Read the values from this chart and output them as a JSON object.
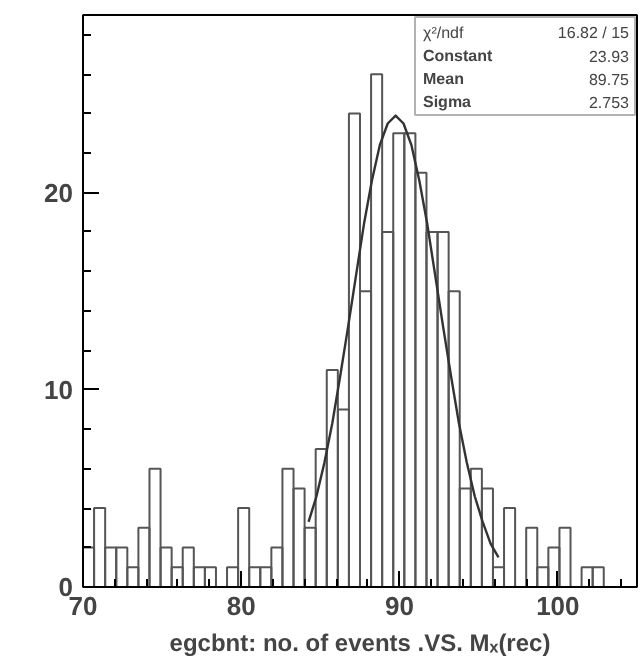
{
  "chart_data": {
    "type": "histogram",
    "xlabel": "egcbnt: no. of events .VS. Mₓ(rec)",
    "bins": [
      70,
      70.7,
      71.4,
      72.1,
      72.8,
      73.5,
      74.2,
      74.9,
      75.6,
      76.3,
      77,
      77.7,
      78.4,
      79.1,
      79.8,
      80.5,
      81.2,
      81.9,
      82.6,
      83.3,
      84,
      84.7,
      85.4,
      86.1,
      86.8,
      87.5,
      88.2,
      88.9,
      89.6,
      90.3,
      91,
      91.7,
      92.4,
      93.1,
      93.8,
      94.5,
      95.2,
      95.9,
      96.6,
      97.3,
      98,
      98.7,
      99.4,
      100.1,
      100.8,
      101.5,
      102.2,
      102.9,
      103.6,
      104.3,
      105
    ],
    "values": [
      2,
      4,
      2,
      2,
      1,
      3,
      6,
      2,
      1,
      2,
      1,
      1,
      0,
      1,
      4,
      1,
      1,
      2,
      6,
      5,
      3,
      7,
      11,
      9,
      24,
      15,
      26,
      18,
      23,
      23,
      21,
      18,
      18,
      15,
      5,
      6,
      5,
      1,
      4,
      0,
      3,
      1,
      2,
      3,
      0,
      1,
      1,
      0,
      0,
      0
    ],
    "color": "#555555",
    "series": [
      {
        "type": "line",
        "color": "#333333",
        "x": [
          84.25,
          84.75,
          85.25,
          85.75,
          86.25,
          86.75,
          87.25,
          87.75,
          88.25,
          88.75,
          89.25,
          89.75,
          90.25,
          90.75,
          91.25,
          91.75,
          92.25,
          92.75,
          93.25,
          93.75,
          94.25,
          94.75,
          95.25,
          95.75,
          96.25
        ],
        "values": [
          3.3,
          4.6,
          6.3,
          8.3,
          10.7,
          13.2,
          15.8,
          18.4,
          20.6,
          22.4,
          23.5,
          23.9,
          23.5,
          22.4,
          20.6,
          18.4,
          15.8,
          13.2,
          10.7,
          8.3,
          6.3,
          4.6,
          3.3,
          2.2,
          1.5
        ]
      }
    ],
    "annotations": [
      "χ²/ndf 16.82 / 15",
      "Constant 23.93",
      "Mean 89.75",
      "Sigma 2.753"
    ],
    "xlim": [
      70,
      105
    ],
    "ylim": [
      0,
      29
    ],
    "xticks": [
      70,
      80,
      90,
      100
    ],
    "yticks": [
      0,
      10,
      20
    ],
    "grid": false
  }
}
